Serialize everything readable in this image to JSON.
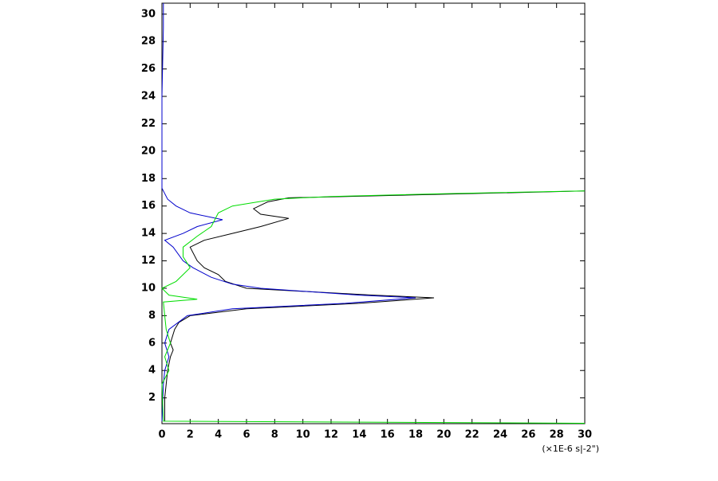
{
  "chart_data": {
    "type": "line",
    "x_label": "(×1E-6 s|-2\")",
    "xlim": [
      0,
      30
    ],
    "xticks": [
      0,
      2,
      4,
      6,
      8,
      10,
      12,
      14,
      16,
      18,
      20,
      22,
      24,
      26,
      28,
      30
    ],
    "ylim": [
      0.12,
      30.8
    ],
    "yticks": [
      2,
      4,
      6,
      8,
      10,
      12,
      14,
      16,
      18,
      20,
      22,
      24,
      26,
      28,
      30
    ],
    "series": [
      {
        "color": "#000000",
        "values": [
          0.2,
          0.2,
          0.3,
          0.4,
          0.6,
          0.8,
          0.6,
          0.9,
          1.2,
          2,
          6,
          14,
          19.3,
          15,
          6,
          4.5,
          4,
          3,
          2.5,
          2,
          3,
          5,
          7,
          9,
          7,
          6.5,
          7.5,
          9,
          30
        ],
        "heights": [
          0.3,
          2,
          3,
          4,
          5,
          5.5,
          6,
          7,
          7.5,
          8,
          8.5,
          8.9,
          9.3,
          9.5,
          10,
          10.5,
          11,
          11.5,
          12,
          13,
          13.5,
          14,
          14.5,
          15.1,
          15.4,
          15.8,
          16.3,
          16.6,
          17.1
        ]
      },
      {
        "color": "#0000cc",
        "values": [
          0,
          0.1,
          0.2,
          0.5,
          0.2,
          0.5,
          1.8,
          5,
          13,
          18,
          14,
          7,
          5,
          3.5,
          2.2,
          1.5,
          0.8,
          0.2,
          1.5,
          2.5,
          4.3,
          2,
          1,
          0.4,
          0,
          0,
          0.1,
          0.1
        ],
        "heights": [
          0.3,
          3,
          4,
          5,
          6,
          7,
          8,
          8.5,
          8.9,
          9.3,
          9.5,
          10,
          10.3,
          10.8,
          11.5,
          12,
          13,
          13.5,
          14,
          14.5,
          15,
          15.5,
          16,
          16.5,
          17.3,
          24,
          29,
          30.8
        ]
      },
      {
        "color": "#00dd00",
        "values": [
          30,
          0.1,
          0,
          0.5,
          0.2,
          0.6,
          0.3,
          0.2,
          0.1,
          2.5,
          0.5,
          0,
          1,
          2,
          1.5,
          1.5,
          2.5,
          3.5,
          4,
          5,
          8,
          12,
          20,
          30
        ],
        "heights": [
          0.15,
          0.3,
          3,
          4,
          5,
          6,
          7,
          8,
          9,
          9.2,
          9.5,
          10,
          10.5,
          11.5,
          12.3,
          13,
          13.8,
          14.5,
          15.5,
          16,
          16.5,
          16.7,
          16.9,
          17.1
        ]
      }
    ]
  }
}
